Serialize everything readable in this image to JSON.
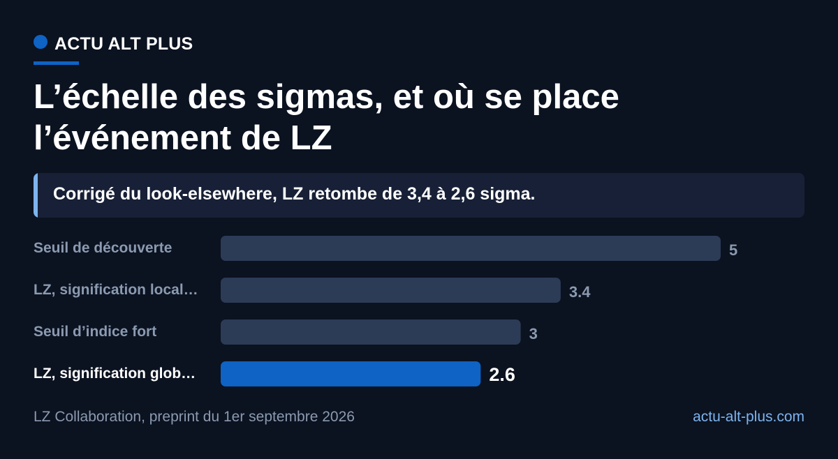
{
  "brand": {
    "name": "ACTU ALT PLUS",
    "color": "#0e63c4"
  },
  "title": "L’échelle des sigmas, et où se place l’événement de LZ",
  "subtitle": "Corrigé du look-elsewhere, LZ retombe de 3,4 à 2,6 sigma.",
  "footer": {
    "source": "LZ Collaboration, preprint du 1er septembre 2026",
    "site": "actu-alt-plus.com"
  },
  "colors": {
    "background": "#0b1220",
    "bar": "#2c3b56",
    "highlight_bar": "#0e63c4",
    "label": "#8b9ab0",
    "highlight_label": "#ffffff"
  },
  "chart_data": {
    "type": "bar",
    "orientation": "horizontal",
    "categories": [
      "Seuil de découverte",
      "LZ, signification local…",
      "Seuil d’indice fort",
      "LZ, signification glob…"
    ],
    "values": [
      5,
      3.4,
      3,
      2.6
    ],
    "value_labels": [
      "5",
      "3.4",
      "3",
      "2.6"
    ],
    "highlight_index": 3,
    "xlim": [
      0,
      5
    ],
    "grid": false,
    "legend": "none"
  }
}
